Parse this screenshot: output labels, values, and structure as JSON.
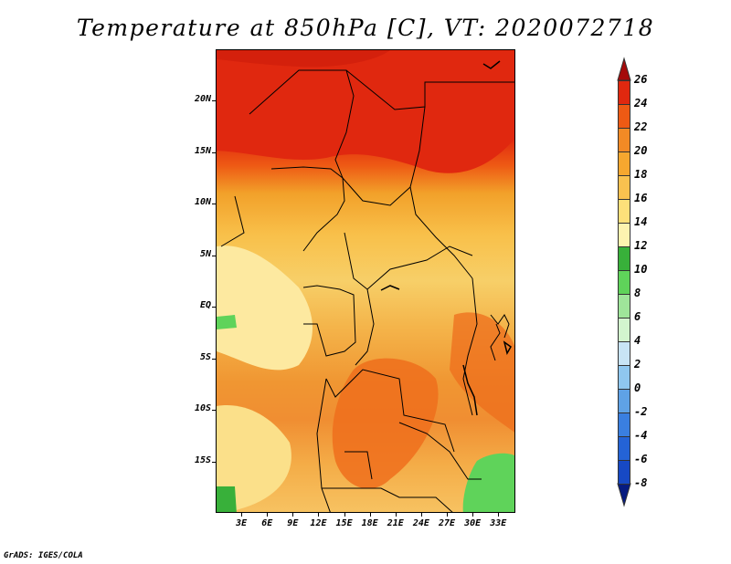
{
  "title": "Temperature at 850hPa [C], VT: 2020072718",
  "footer": "GrADS: IGES/COLA",
  "map": {
    "lon_range": [
      0,
      35
    ],
    "lat_range": [
      -20,
      25
    ],
    "y_axis_labels": [
      {
        "text": "20N",
        "lat": 20
      },
      {
        "text": "15N",
        "lat": 15
      },
      {
        "text": "10N",
        "lat": 10
      },
      {
        "text": "5N",
        "lat": 5
      },
      {
        "text": "EQ",
        "lat": 0
      },
      {
        "text": "5S",
        "lat": -5
      },
      {
        "text": "10S",
        "lat": -10
      },
      {
        "text": "15S",
        "lat": -15
      }
    ],
    "x_axis_labels": [
      {
        "text": "3E",
        "lon": 3
      },
      {
        "text": "6E",
        "lon": 6
      },
      {
        "text": "9E",
        "lon": 9
      },
      {
        "text": "12E",
        "lon": 12
      },
      {
        "text": "15E",
        "lon": 15
      },
      {
        "text": "18E",
        "lon": 18
      },
      {
        "text": "21E",
        "lon": 21
      },
      {
        "text": "24E",
        "lon": 24
      },
      {
        "text": "27E",
        "lon": 27
      },
      {
        "text": "30E",
        "lon": 30
      },
      {
        "text": "33E",
        "lon": 33
      }
    ]
  },
  "colorbar": {
    "levels": [
      "26",
      "24",
      "22",
      "20",
      "18",
      "16",
      "14",
      "12",
      "10",
      "8",
      "6",
      "4",
      "2",
      "0",
      "-2",
      "-4",
      "-6",
      "-8"
    ],
    "colors": [
      "#a50a0a",
      "#e0280f",
      "#ee5a14",
      "#f28a25",
      "#f6a72f",
      "#f9c14f",
      "#fde07a",
      "#fdf3b0",
      "#38b03a",
      "#5fd35a",
      "#9fe59a",
      "#d3f5ce",
      "#c8e4f5",
      "#8fc7ef",
      "#5fa2e6",
      "#3a7fe0",
      "#2463d6",
      "#1749c4",
      "#0d31a6",
      "#061b80"
    ]
  }
}
